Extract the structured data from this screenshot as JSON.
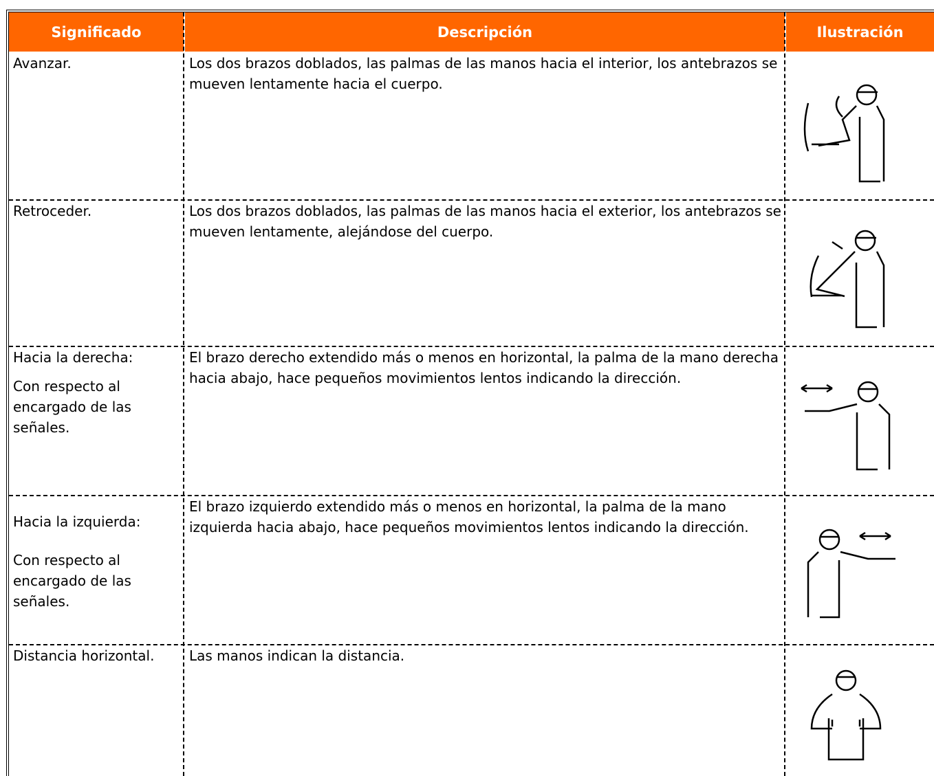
{
  "table": {
    "headers": [
      "Significado",
      "Descripción",
      "Ilustración"
    ],
    "rows": [
      {
        "meaning": [
          "Avanzar."
        ],
        "description": "Los dos brazos doblados, las palmas de las manos hacia el interior, los antebrazos se mueven lentamente hacia el cuerpo."
      },
      {
        "meaning": [
          "Retroceder."
        ],
        "description": "Los dos brazos doblados, las palmas de las manos hacia el exterior, los antebrazos se mueven lentamente, alejándose del cuerpo."
      },
      {
        "meaning": [
          "Hacia la derecha:",
          "Con respecto al encargado de las señales."
        ],
        "description": "El brazo derecho extendido más o menos en horizontal, la palma de la mano derecha hacia abajo, hace pequeños movimientos lentos indicando la dirección."
      },
      {
        "meaning": [
          "Hacia la izquierda:",
          "Con respecto al encargado de las señales."
        ],
        "description": "El brazo izquierdo extendido más o menos en horizontal, la palma de la mano izquierda hacia abajo, hace pequeños movimientos lentos indicando la dirección."
      },
      {
        "meaning": [
          "Distancia horizontal."
        ],
        "description": "Las manos indican la distancia."
      }
    ]
  }
}
